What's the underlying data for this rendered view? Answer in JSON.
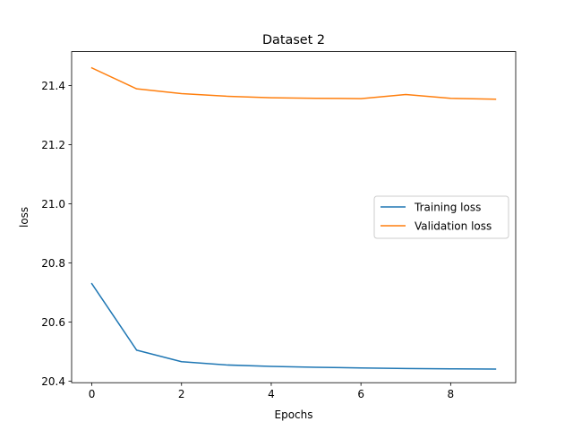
{
  "chart_data": {
    "type": "line",
    "title": "Dataset 2",
    "xlabel": "Epochs",
    "ylabel": "loss",
    "xlim": [
      -0.45,
      9.45
    ],
    "ylim": [
      20.395,
      21.515
    ],
    "x_ticks": [
      0,
      2,
      4,
      6,
      8
    ],
    "y_ticks": [
      20.4,
      20.6,
      20.8,
      21.0,
      21.2,
      21.4
    ],
    "y_tick_labels": [
      "20.4",
      "20.6",
      "20.8",
      "21.0",
      "21.2",
      "21.4"
    ],
    "grid": false,
    "legend_position": "center-right",
    "x": [
      0,
      1,
      2,
      3,
      4,
      5,
      6,
      7,
      8,
      9
    ],
    "series": [
      {
        "name": "Training loss",
        "color": "#1f77b4",
        "values": [
          20.73,
          20.505,
          20.466,
          20.455,
          20.45,
          20.447,
          20.445,
          20.443,
          20.442,
          20.441
        ]
      },
      {
        "name": "Validation loss",
        "color": "#ff7f0e",
        "values": [
          21.46,
          21.389,
          21.373,
          21.364,
          21.359,
          21.357,
          21.356,
          21.37,
          21.357,
          21.354
        ]
      }
    ]
  }
}
